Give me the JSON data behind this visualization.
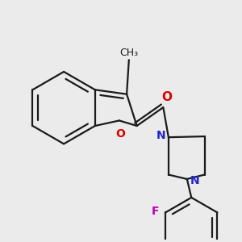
{
  "background_color": "#ebebeb",
  "bond_color": "#1a1a1a",
  "bond_width": 1.6,
  "atom_colors": {
    "O": "#dd0000",
    "N": "#2222cc",
    "F": "#bb00bb",
    "C": "#1a1a1a"
  },
  "font_size_atom": 10,
  "font_size_methyl": 9
}
